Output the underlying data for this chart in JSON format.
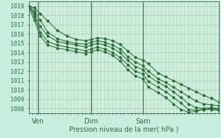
{
  "xlabel": "Pression niveau de la mer( hPa )",
  "bg_color": "#c8eee0",
  "plot_bg_color": "#d0eedc",
  "grid_color": "#90c8a8",
  "line_color": "#2d6b3c",
  "vline_color": "#4a6a5a",
  "ylim": [
    1007.5,
    1019.5
  ],
  "xlim": [
    0,
    100
  ],
  "yticks": [
    1008,
    1009,
    1010,
    1011,
    1012,
    1013,
    1014,
    1015,
    1016,
    1017,
    1018,
    1019
  ],
  "xtick_positions": [
    5,
    33,
    60
  ],
  "xtick_labels": [
    "Ven",
    "Dim",
    "Sam"
  ],
  "vlines": [
    5,
    33,
    60
  ],
  "series": [
    [
      0,
      1019.0,
      3,
      1018.8,
      6,
      1018.2,
      10,
      1017.4,
      15,
      1016.4,
      20,
      1015.8,
      25,
      1015.4,
      30,
      1015.3,
      33,
      1015.4,
      36,
      1015.6,
      40,
      1015.5,
      44,
      1015.3,
      48,
      1014.9,
      52,
      1014.2,
      56,
      1013.5,
      60,
      1013.2,
      63,
      1012.8,
      68,
      1011.8,
      72,
      1011.4,
      76,
      1011.0,
      80,
      1010.6,
      84,
      1010.2,
      88,
      1009.8,
      92,
      1009.4,
      96,
      1009.1,
      100,
      1008.7
    ],
    [
      0,
      1019.0,
      3,
      1018.5,
      6,
      1017.5,
      10,
      1016.2,
      15,
      1015.5,
      20,
      1015.2,
      25,
      1015.0,
      30,
      1014.9,
      33,
      1015.1,
      36,
      1015.3,
      40,
      1015.1,
      44,
      1014.8,
      48,
      1014.4,
      52,
      1013.6,
      56,
      1013.0,
      60,
      1012.6,
      63,
      1012.0,
      68,
      1011.2,
      72,
      1010.8,
      76,
      1010.3,
      80,
      1009.8,
      84,
      1009.3,
      88,
      1008.8,
      92,
      1008.5,
      96,
      1008.4,
      100,
      1008.3
    ],
    [
      0,
      1019.0,
      3,
      1018.2,
      6,
      1016.8,
      10,
      1015.8,
      15,
      1015.2,
      20,
      1015.0,
      25,
      1014.8,
      30,
      1014.6,
      33,
      1014.8,
      36,
      1015.0,
      40,
      1014.8,
      44,
      1014.5,
      48,
      1014.0,
      52,
      1013.2,
      56,
      1012.5,
      60,
      1012.2,
      63,
      1011.5,
      68,
      1010.8,
      72,
      1010.4,
      76,
      1009.8,
      80,
      1009.2,
      84,
      1008.5,
      88,
      1008.1,
      92,
      1008.0,
      96,
      1008.1,
      100,
      1008.0
    ],
    [
      0,
      1019.0,
      3,
      1017.9,
      6,
      1016.2,
      10,
      1015.2,
      15,
      1014.8,
      20,
      1014.6,
      25,
      1014.4,
      30,
      1014.2,
      33,
      1014.4,
      36,
      1014.6,
      40,
      1014.4,
      44,
      1014.0,
      48,
      1013.5,
      52,
      1012.7,
      56,
      1012.0,
      60,
      1011.7,
      63,
      1010.9,
      68,
      1010.3,
      72,
      1009.8,
      76,
      1009.2,
      80,
      1008.6,
      84,
      1007.9,
      88,
      1007.8,
      92,
      1007.9,
      96,
      1008.0,
      100,
      1007.9
    ],
    [
      0,
      1018.8,
      3,
      1017.5,
      6,
      1015.8,
      10,
      1014.8,
      15,
      1014.5,
      20,
      1014.3,
      25,
      1014.1,
      30,
      1013.9,
      33,
      1014.1,
      36,
      1014.3,
      40,
      1014.1,
      44,
      1013.7,
      48,
      1013.1,
      52,
      1012.2,
      56,
      1011.5,
      60,
      1011.2,
      63,
      1010.3,
      68,
      1009.7,
      72,
      1009.2,
      76,
      1008.5,
      80,
      1007.9,
      84,
      1007.6,
      88,
      1007.7,
      92,
      1007.9,
      96,
      1007.9,
      100,
      1007.8
    ]
  ]
}
